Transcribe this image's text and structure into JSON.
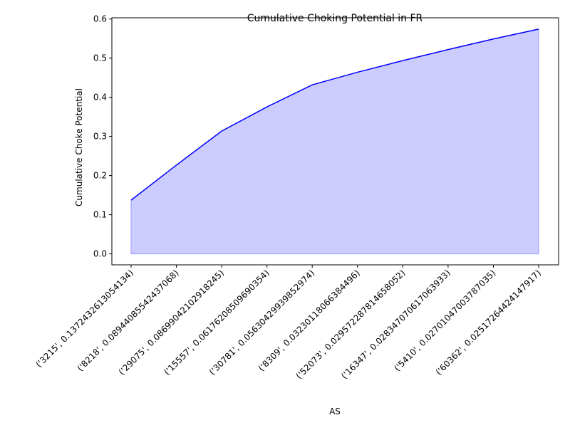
{
  "chart_data": {
    "type": "area",
    "title": "Cumulative Choking Potential in FR",
    "xlabel": "AS",
    "ylabel": "Cumulative Choke Potential",
    "categories": [
      "('3215', 0.1372432613054134)",
      "('8218', 0.0894408554243706​8)",
      "('29075', 0.08699042102918245)",
      "('15557', 0.06176208509690354)",
      "('30781', 0.0563042993985297​4)",
      "('8309', 0.0323011806638449​6)",
      "('52073', 0.02957228781465805​2)",
      "('16347', 0.02834707061706393​3)",
      "('5410', 0.02701047003787035)",
      "('60362', 0.02517264424147917)"
    ],
    "values": [
      0.1372,
      0.2267,
      0.3137,
      0.3754,
      0.4317,
      0.464,
      0.4936,
      0.5219,
      0.5489,
      0.5741
    ],
    "ylim": [
      -0.028,
      0.603
    ],
    "yticks": [
      0.0,
      0.1,
      0.2,
      0.3,
      0.4,
      0.5,
      0.6
    ],
    "ytick_labels": [
      "0.0",
      "0.1",
      "0.2",
      "0.3",
      "0.4",
      "0.5",
      "0.6"
    ],
    "grid": false,
    "colors": {
      "line": "#0000ff",
      "fill": "#ccccff",
      "fill_edge": "#9999ff"
    }
  }
}
